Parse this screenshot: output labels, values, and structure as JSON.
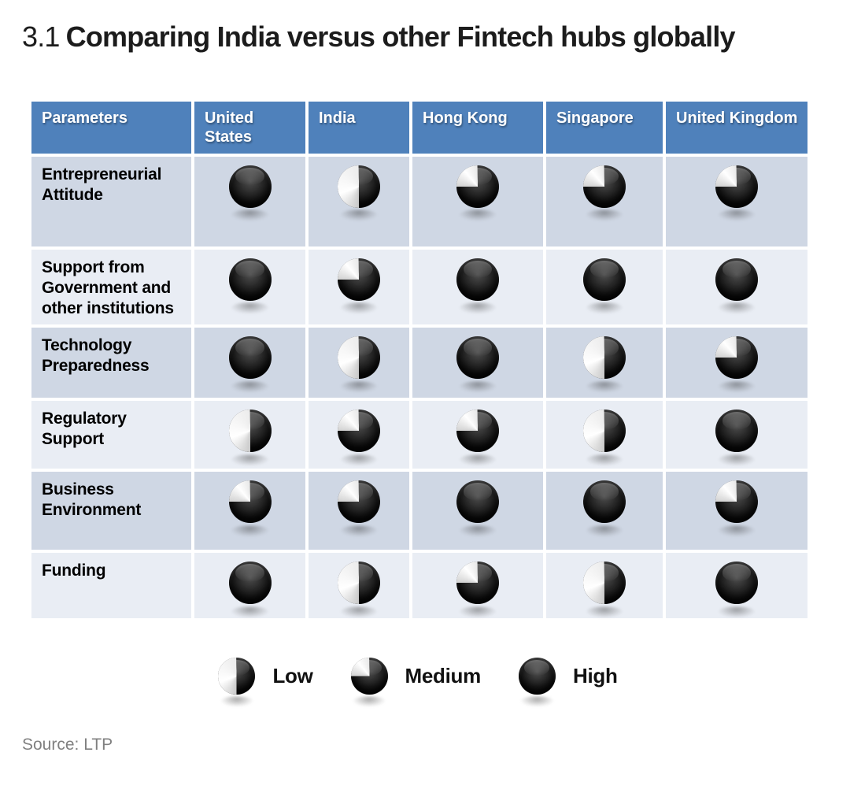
{
  "title": {
    "number": "3.1",
    "text": "Comparing India versus other Fintech hubs globally"
  },
  "chart_data": {
    "type": "table",
    "title": "Comparing India versus other Fintech hubs globally",
    "figure_number": "3.1",
    "columns": [
      "Parameters",
      "United States",
      "India",
      "Hong Kong",
      "Singapore",
      "United Kingdom"
    ],
    "rows": [
      {
        "parameter": "Entrepreneurial Attitude",
        "ratings": [
          "High",
          "Low",
          "Medium",
          "Medium",
          "Medium"
        ]
      },
      {
        "parameter": "Support from Government and other institutions",
        "ratings": [
          "High",
          "Medium",
          "High",
          "High",
          "High"
        ]
      },
      {
        "parameter": "Technology Preparedness",
        "ratings": [
          "High",
          "Low",
          "High",
          "Low",
          "Medium"
        ]
      },
      {
        "parameter": "Regulatory Support",
        "ratings": [
          "Low",
          "Medium",
          "Medium",
          "Low",
          "High"
        ]
      },
      {
        "parameter": "Business Environment",
        "ratings": [
          "Medium",
          "Medium",
          "High",
          "High",
          "Medium"
        ]
      },
      {
        "parameter": "Funding",
        "ratings": [
          "High",
          "Low",
          "Medium",
          "Low",
          "High"
        ]
      }
    ],
    "rating_scale": [
      "Low",
      "Medium",
      "High"
    ],
    "legend_position": "bottom-center"
  },
  "legend": {
    "items": [
      {
        "label": "Low",
        "level": "low"
      },
      {
        "label": "Medium",
        "level": "medium"
      },
      {
        "label": "High",
        "level": "high"
      }
    ]
  },
  "source": "Source: LTP",
  "colors": {
    "header_bg": "#4f81bb",
    "header_text": "#ffffff",
    "row_odd_bg": "#cfd7e4",
    "row_even_bg": "#e9edf4",
    "ball_dark": "#000000",
    "ball_light": "#ffffff",
    "title_text": "#1c1c1c",
    "source_text": "#808080"
  }
}
